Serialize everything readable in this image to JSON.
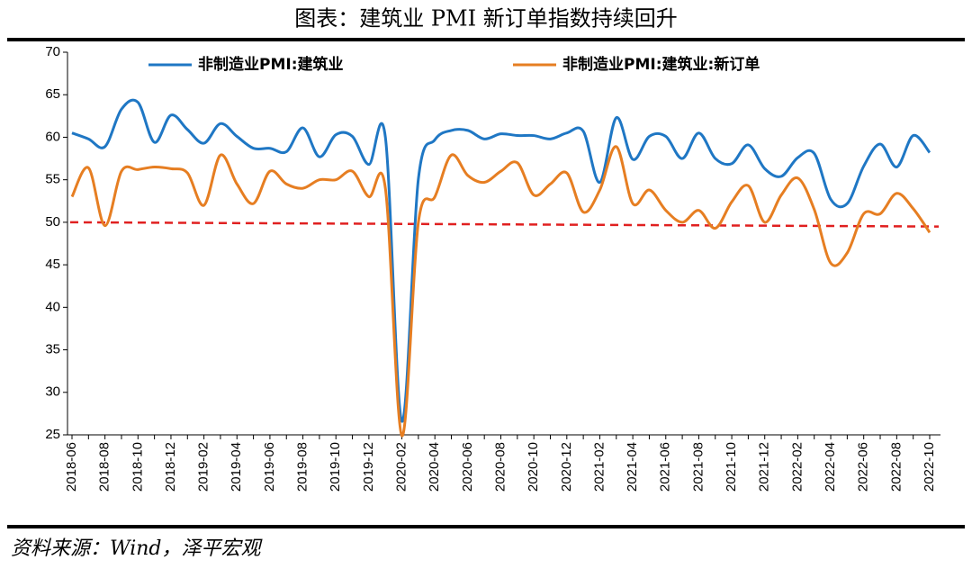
{
  "chart_data": {
    "type": "line",
    "title": "图表：建筑业 PMI 新订单指数持续回升",
    "source": "资料来源：Wind，泽平宏观",
    "categories": [
      "2018-06",
      null,
      "2018-08",
      null,
      "2018-10",
      null,
      "2018-12",
      null,
      "2019-02",
      null,
      "2019-04",
      null,
      "2019-06",
      null,
      "2019-08",
      null,
      "2019-10",
      null,
      "2019-12",
      null,
      "2020-02",
      null,
      "2020-04",
      null,
      "2020-06",
      null,
      "2020-08",
      null,
      "2020-10",
      null,
      "2020-12",
      null,
      "2021-02",
      null,
      "2021-04",
      null,
      "2021-06",
      null,
      "2021-08",
      null,
      "2021-10",
      null,
      "2021-12",
      null,
      "2022-02",
      null,
      "2022-04",
      null,
      "2022-06",
      null,
      "2022-08",
      null,
      "2022-10"
    ],
    "series": [
      {
        "name": "非制造业PMI:建筑业",
        "color": "#1f77c4",
        "values": [
          60.5,
          59.8,
          58.9,
          63.3,
          64.1,
          59.4,
          62.6,
          60.9,
          59.3,
          61.6,
          60.1,
          58.7,
          58.7,
          58.3,
          61.1,
          57.7,
          60.3,
          60.1,
          56.8,
          60.0,
          26.6,
          55.1,
          59.7,
          60.8,
          60.8,
          59.8,
          60.4,
          60.2,
          60.2,
          59.8,
          60.5,
          60.7,
          54.7,
          62.3,
          57.4,
          60.1,
          60.1,
          57.5,
          60.5,
          57.5,
          56.9,
          59.1,
          56.3,
          55.4,
          57.6,
          58.1,
          52.7,
          52.2,
          56.6,
          59.2,
          56.5,
          60.2,
          58.2
        ]
      },
      {
        "name": "非制造业PMI:建筑业:新订单",
        "color": "#e67e22",
        "values": [
          53.0,
          56.4,
          49.6,
          56.0,
          56.2,
          56.5,
          56.3,
          55.8,
          52.0,
          57.9,
          54.5,
          52.2,
          56.0,
          54.5,
          54.0,
          55.0,
          55.0,
          56.0,
          53.0,
          54.0,
          24.9,
          50.0,
          53.0,
          57.9,
          55.5,
          54.7,
          56.0,
          57.0,
          53.2,
          54.5,
          55.8,
          51.2,
          53.8,
          58.9,
          52.2,
          53.8,
          51.4,
          50.0,
          51.4,
          49.3,
          52.4,
          54.3,
          50.0,
          53.2,
          55.2,
          51.5,
          45.2,
          46.4,
          51.0,
          51.0,
          53.4,
          51.6,
          48.8
        ]
      }
    ],
    "reference_line": {
      "color": "#e02020",
      "start": 50,
      "end": 49.5
    },
    "ylim": [
      25,
      70
    ],
    "yticks": [
      25,
      30,
      35,
      40,
      45,
      50,
      55,
      60,
      65,
      70
    ],
    "grid": false,
    "legend": "top"
  }
}
